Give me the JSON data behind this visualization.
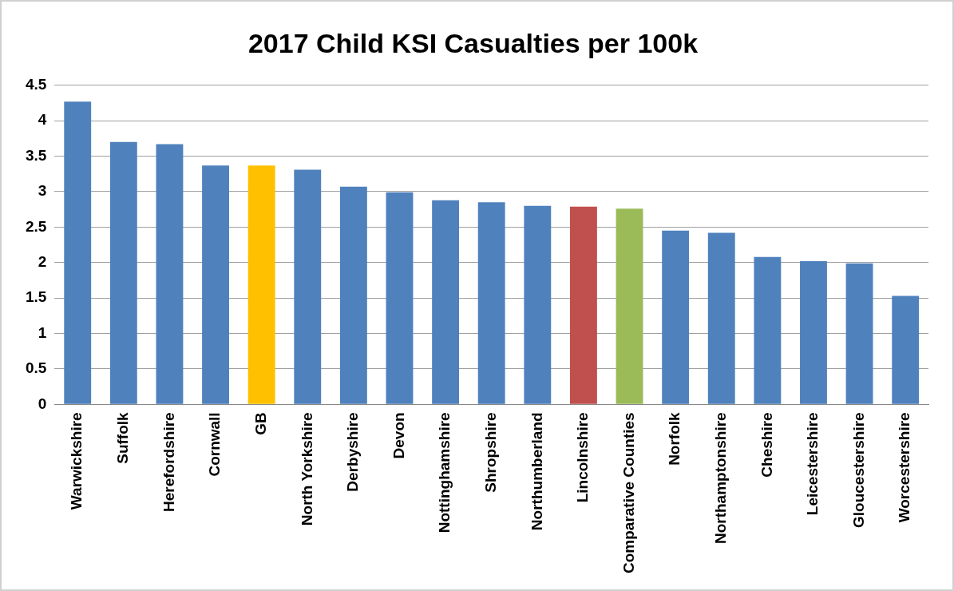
{
  "chart_data": {
    "type": "bar",
    "title": "2017 Child KSI Casualties per 100k",
    "categories": [
      "Warwickshire",
      "Suffolk",
      "Herefordshire",
      "Cornwall",
      "GB",
      "North Yorkshire",
      "Derbyshire",
      "Devon",
      "Nottinghamshire",
      "Shropshire",
      "Northumberland",
      "Lincolnshire",
      "Comparative Counties",
      "Norfolk",
      "Northamptonshire",
      "Cheshire",
      "Leicestershire",
      "Gloucestershire",
      "Worcestershire"
    ],
    "values": [
      4.27,
      3.7,
      3.67,
      3.37,
      3.37,
      3.31,
      3.07,
      2.99,
      2.88,
      2.85,
      2.8,
      2.79,
      2.76,
      2.45,
      2.42,
      2.08,
      2.02,
      1.99,
      1.53
    ],
    "colors": [
      "#4f81bd",
      "#4f81bd",
      "#4f81bd",
      "#4f81bd",
      "#ffc000",
      "#4f81bd",
      "#4f81bd",
      "#4f81bd",
      "#4f81bd",
      "#4f81bd",
      "#4f81bd",
      "#c0504d",
      "#9bbb59",
      "#4f81bd",
      "#4f81bd",
      "#4f81bd",
      "#4f81bd",
      "#4f81bd",
      "#4f81bd"
    ],
    "ylim": [
      0,
      4.5
    ],
    "yticks": [
      0,
      0.5,
      1,
      1.5,
      2,
      2.5,
      3,
      3.5,
      4,
      4.5
    ],
    "grid": "y",
    "legend": false
  }
}
